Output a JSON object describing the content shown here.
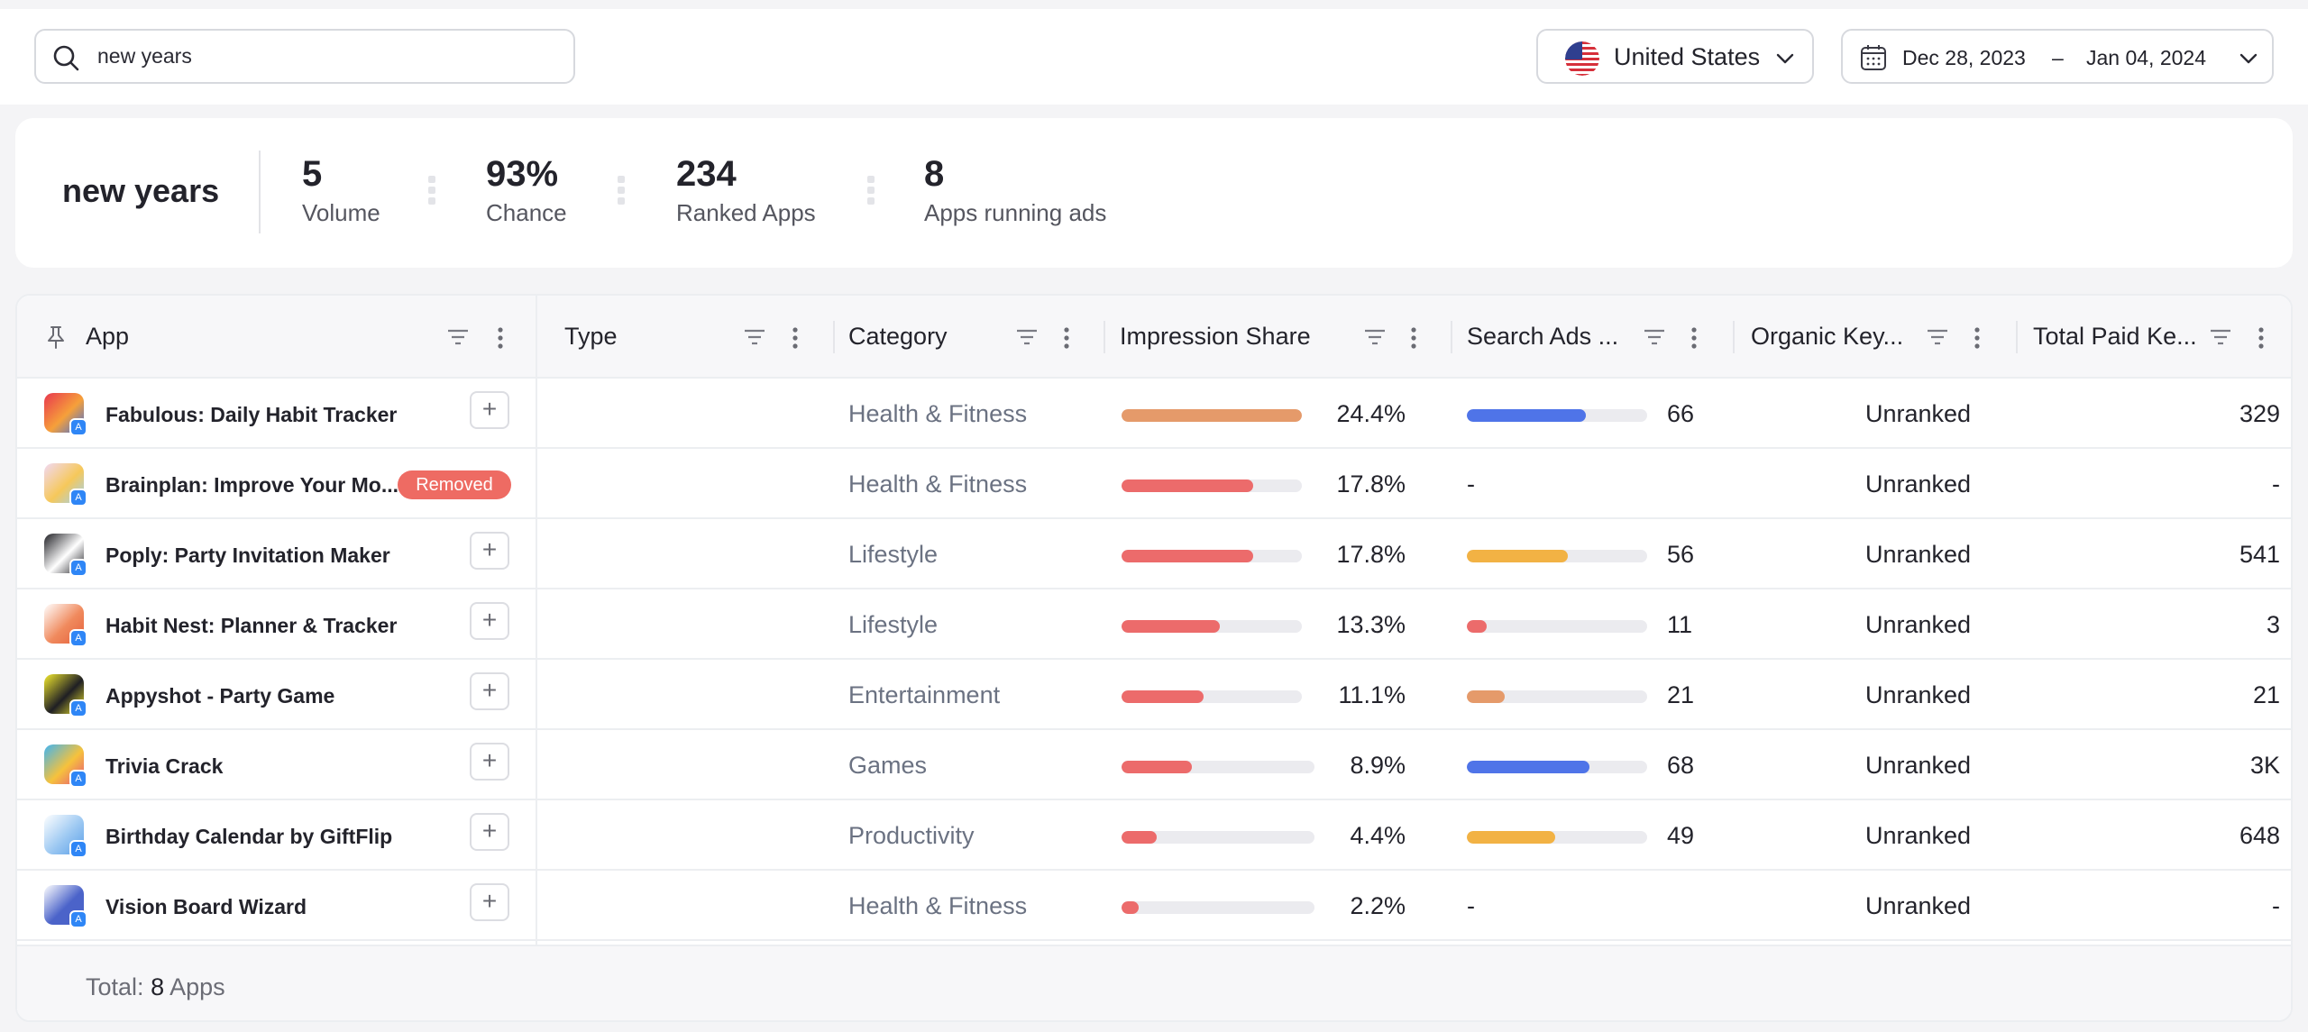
{
  "search": {
    "value": "new years",
    "icon": "search-icon"
  },
  "country": {
    "label": "United States",
    "flag": "us-flag-icon"
  },
  "date_range": {
    "start": "Dec 28, 2023",
    "separator": "–",
    "end": "Jan 04, 2024"
  },
  "summary": {
    "keyword": "new years",
    "stats": [
      {
        "value": "5",
        "label": "Volume"
      },
      {
        "value": "93%",
        "label": "Chance"
      },
      {
        "value": "234",
        "label": "Ranked Apps"
      },
      {
        "value": "8",
        "label": "Apps running ads"
      }
    ]
  },
  "table": {
    "columns": [
      "App",
      "Type",
      "Category",
      "Impression Share",
      "Search Ads ...",
      "Organic Key...",
      "Total Paid Ke..."
    ],
    "rows": [
      {
        "name": "Fabulous: Daily Habit Tracker",
        "status": "",
        "category": "Health & Fitness",
        "impression_share": 24.4,
        "impression_label": "24.4%",
        "impression_color": "#e59a6a",
        "search_ads": 66,
        "search_ads_label": "66",
        "search_ads_color": "#4f74e8",
        "organic": "Unranked",
        "paid": "329",
        "icon_colors": [
          "#e8374f",
          "#f6a03a",
          "#3c6de0"
        ]
      },
      {
        "name": "Brainplan: Improve Your Mo...",
        "status": "Removed",
        "category": "Health & Fitness",
        "impression_share": 17.8,
        "impression_label": "17.8%",
        "impression_color": "#ec6b6b",
        "search_ads": null,
        "search_ads_label": "-",
        "search_ads_color": "",
        "organic": "Unranked",
        "paid": "-",
        "icon_colors": [
          "#f1d9f4",
          "#f6c85a",
          "#9bd2f7"
        ]
      },
      {
        "name": "Poply: Party Invitation Maker",
        "status": "",
        "category": "Lifestyle",
        "impression_share": 17.8,
        "impression_label": "17.8%",
        "impression_color": "#ec6b6b",
        "search_ads": 56,
        "search_ads_label": "56",
        "search_ads_color": "#f2b244",
        "organic": "Unranked",
        "paid": "541",
        "icon_colors": [
          "#1f1f24",
          "#ffffff",
          "#1f1f24"
        ]
      },
      {
        "name": "Habit Nest: Planner & Tracker",
        "status": "",
        "category": "Lifestyle",
        "impression_share": 13.3,
        "impression_label": "13.3%",
        "impression_color": "#ec6b6b",
        "search_ads": 11,
        "search_ads_label": "11",
        "search_ads_color": "#ec6b6b",
        "organic": "Unranked",
        "paid": "3",
        "icon_colors": [
          "#ffffff",
          "#f08a5d",
          "#e45f3c"
        ]
      },
      {
        "name": "Appyshot - Party Game",
        "status": "",
        "category": "Entertainment",
        "impression_share": 11.1,
        "impression_label": "11.1%",
        "impression_color": "#ec6b6b",
        "search_ads": 21,
        "search_ads_label": "21",
        "search_ads_color": "#e59a6a",
        "organic": "Unranked",
        "paid": "21",
        "icon_colors": [
          "#f3ea2e",
          "#1f1f24",
          "#f3ea2e"
        ]
      },
      {
        "name": "Trivia Crack",
        "status": "",
        "category": "Games",
        "impression_share": 8.9,
        "impression_label": "8.9%",
        "impression_color": "#ec6b6b",
        "search_ads": 68,
        "search_ads_label": "68",
        "search_ads_color": "#4f74e8",
        "organic": "Unranked",
        "paid": "3K",
        "icon_colors": [
          "#3fb4f2",
          "#f6c23c",
          "#e6527d"
        ]
      },
      {
        "name": "Birthday Calendar by GiftFlip",
        "status": "",
        "category": "Productivity",
        "impression_share": 4.4,
        "impression_label": "4.4%",
        "impression_color": "#ec6b6b",
        "search_ads": 49,
        "search_ads_label": "49",
        "search_ads_color": "#f2b244",
        "organic": "Unranked",
        "paid": "648",
        "icon_colors": [
          "#ffffff",
          "#9cc8f2",
          "#5a9ee8"
        ]
      },
      {
        "name": "Vision Board Wizard",
        "status": "",
        "category": "Health & Fitness",
        "impression_share": 2.2,
        "impression_label": "2.2%",
        "impression_color": "#ec6b6b",
        "search_ads": null,
        "search_ads_label": "-",
        "search_ads_color": "",
        "organic": "Unranked",
        "paid": "-",
        "icon_colors": [
          "#ffffff",
          "#4b63c9",
          "#4b63c9"
        ]
      }
    ],
    "footer": {
      "prefix": "Total:",
      "count": "8",
      "suffix": "Apps"
    }
  },
  "colors": {
    "accent_blue": "#4f74e8",
    "accent_orange": "#f2b244",
    "accent_red": "#ec6b6b",
    "removed_badge": "#ee6b63"
  }
}
